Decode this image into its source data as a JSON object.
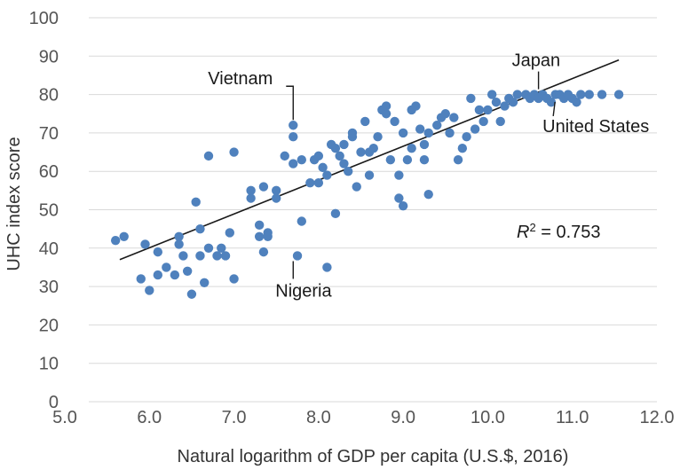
{
  "chart_data": {
    "type": "scatter",
    "title": "",
    "xlabel": "Natural logarithm of GDP per capita (U.S.$, 2016)",
    "ylabel": "UHC index score",
    "xlim": [
      5.0,
      12.0
    ],
    "ylim": [
      0,
      100
    ],
    "x_ticks": [
      "5.0",
      "6.0",
      "7.0",
      "8.0",
      "9.0",
      "10.0",
      "11.0",
      "12.0"
    ],
    "y_ticks": [
      "0",
      "10",
      "20",
      "30",
      "40",
      "50",
      "60",
      "70",
      "80",
      "90",
      "100"
    ],
    "grid": "horizontal",
    "point_color": "#4f81bd",
    "trend_color": "#1a1a1a",
    "trendline": {
      "x": [
        5.65,
        11.55
      ],
      "y": [
        37,
        89
      ]
    },
    "r2_label": {
      "prefix": "R",
      "sup": "2",
      "suffix": " = 0.753"
    },
    "annotations": [
      {
        "label": "Vietnam",
        "x": 7.7,
        "y": 72
      },
      {
        "label": "Japan",
        "x": 10.6,
        "y": 80
      },
      {
        "label": "United States",
        "x": 10.9,
        "y": 79
      },
      {
        "label": "Nigeria",
        "x": 7.7,
        "y": 38
      }
    ],
    "points": [
      [
        5.6,
        42
      ],
      [
        5.7,
        43
      ],
      [
        5.9,
        32
      ],
      [
        5.95,
        41
      ],
      [
        6.0,
        29
      ],
      [
        6.1,
        39
      ],
      [
        6.1,
        33
      ],
      [
        6.2,
        35
      ],
      [
        6.3,
        33
      ],
      [
        6.35,
        43
      ],
      [
        6.35,
        41
      ],
      [
        6.4,
        38
      ],
      [
        6.45,
        34
      ],
      [
        6.5,
        28
      ],
      [
        6.55,
        52
      ],
      [
        6.6,
        45
      ],
      [
        6.6,
        38
      ],
      [
        6.65,
        31
      ],
      [
        6.7,
        40
      ],
      [
        6.7,
        64
      ],
      [
        6.8,
        38
      ],
      [
        6.85,
        40
      ],
      [
        6.9,
        38
      ],
      [
        6.95,
        44
      ],
      [
        7.0,
        65
      ],
      [
        7.0,
        32
      ],
      [
        7.2,
        55
      ],
      [
        7.2,
        53
      ],
      [
        7.3,
        46
      ],
      [
        7.3,
        43
      ],
      [
        7.35,
        39
      ],
      [
        7.35,
        56
      ],
      [
        7.4,
        44
      ],
      [
        7.4,
        43
      ],
      [
        7.5,
        55
      ],
      [
        7.5,
        53
      ],
      [
        7.6,
        64
      ],
      [
        7.7,
        72
      ],
      [
        7.7,
        69
      ],
      [
        7.7,
        62
      ],
      [
        7.75,
        38
      ],
      [
        7.8,
        63
      ],
      [
        7.8,
        47
      ],
      [
        7.9,
        57
      ],
      [
        7.95,
        63
      ],
      [
        8.0,
        57
      ],
      [
        8.0,
        64
      ],
      [
        8.05,
        61
      ],
      [
        8.1,
        59
      ],
      [
        8.1,
        35
      ],
      [
        8.15,
        67
      ],
      [
        8.2,
        66
      ],
      [
        8.2,
        49
      ],
      [
        8.25,
        64
      ],
      [
        8.3,
        62
      ],
      [
        8.3,
        67
      ],
      [
        8.35,
        60
      ],
      [
        8.4,
        69
      ],
      [
        8.4,
        70
      ],
      [
        8.45,
        56
      ],
      [
        8.5,
        65
      ],
      [
        8.55,
        73
      ],
      [
        8.6,
        65
      ],
      [
        8.6,
        59
      ],
      [
        8.65,
        66
      ],
      [
        8.7,
        69
      ],
      [
        8.75,
        76
      ],
      [
        8.8,
        75
      ],
      [
        8.8,
        77
      ],
      [
        8.85,
        63
      ],
      [
        8.9,
        73
      ],
      [
        8.95,
        59
      ],
      [
        8.95,
        53
      ],
      [
        9.0,
        51
      ],
      [
        9.0,
        70
      ],
      [
        9.05,
        63
      ],
      [
        9.1,
        66
      ],
      [
        9.1,
        76
      ],
      [
        9.15,
        77
      ],
      [
        9.2,
        71
      ],
      [
        9.25,
        63
      ],
      [
        9.25,
        67
      ],
      [
        9.3,
        54
      ],
      [
        9.3,
        70
      ],
      [
        9.4,
        72
      ],
      [
        9.45,
        74
      ],
      [
        9.5,
        75
      ],
      [
        9.55,
        70
      ],
      [
        9.6,
        74
      ],
      [
        9.65,
        63
      ],
      [
        9.7,
        66
      ],
      [
        9.75,
        69
      ],
      [
        9.8,
        79
      ],
      [
        9.85,
        71
      ],
      [
        9.9,
        76
      ],
      [
        9.95,
        73
      ],
      [
        10.0,
        76
      ],
      [
        10.05,
        80
      ],
      [
        10.1,
        78
      ],
      [
        10.15,
        73
      ],
      [
        10.2,
        77
      ],
      [
        10.25,
        79
      ],
      [
        10.3,
        78
      ],
      [
        10.35,
        80
      ],
      [
        10.45,
        80
      ],
      [
        10.5,
        79
      ],
      [
        10.55,
        80
      ],
      [
        10.6,
        79
      ],
      [
        10.65,
        80
      ],
      [
        10.7,
        79
      ],
      [
        10.75,
        78
      ],
      [
        10.8,
        80
      ],
      [
        10.85,
        80
      ],
      [
        10.9,
        79
      ],
      [
        10.95,
        80
      ],
      [
        11.0,
        79
      ],
      [
        11.05,
        78
      ],
      [
        11.1,
        80
      ],
      [
        11.2,
        80
      ],
      [
        11.35,
        80
      ],
      [
        11.55,
        80
      ]
    ]
  }
}
